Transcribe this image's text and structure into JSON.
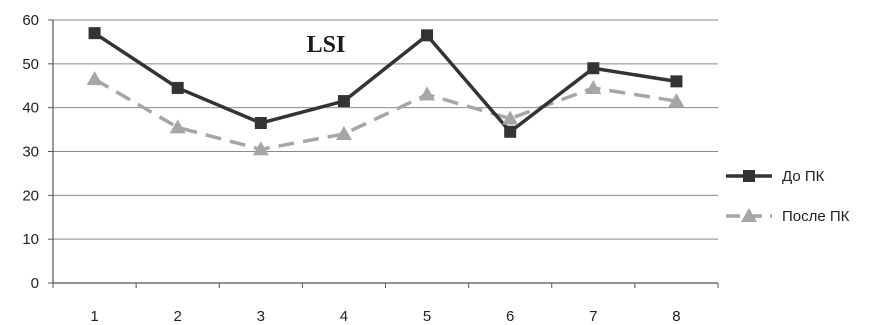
{
  "chart_data": {
    "type": "line",
    "title": "LSI",
    "xlabel": "",
    "ylabel": "",
    "categories": [
      "1",
      "2",
      "3",
      "4",
      "5",
      "6",
      "7",
      "8"
    ],
    "ylim": [
      0,
      60
    ],
    "yticks": [
      0,
      10,
      20,
      30,
      40,
      50,
      60
    ],
    "grid": true,
    "legend_position": "right",
    "series": [
      {
        "name": "До ПК",
        "values": [
          57,
          44.5,
          36.5,
          41.5,
          56.5,
          34.5,
          49,
          46
        ],
        "color": "#333333",
        "line_style": "solid",
        "marker": "square"
      },
      {
        "name": "После ПК",
        "values": [
          46.5,
          35.5,
          30.5,
          34,
          43,
          37.5,
          44.5,
          41.5
        ],
        "color": "#a6a6a6",
        "line_style": "dashed",
        "marker": "triangle"
      }
    ]
  }
}
